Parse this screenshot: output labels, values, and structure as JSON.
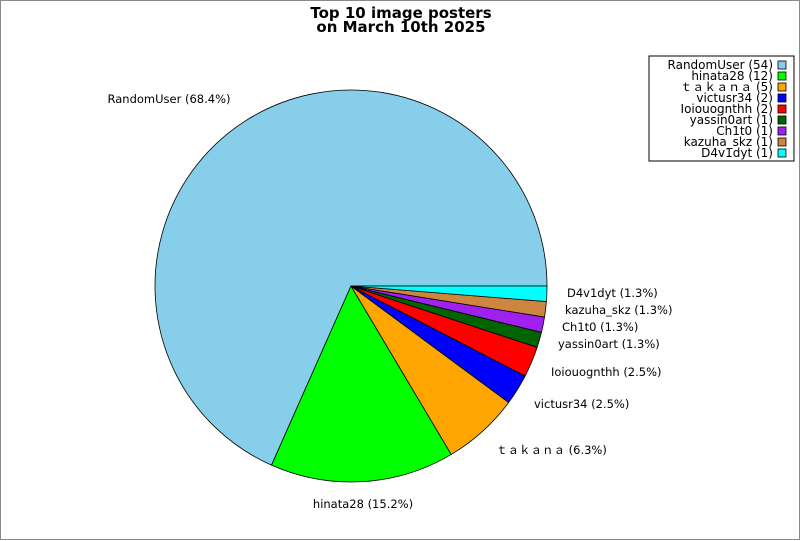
{
  "chart_data": {
    "type": "pie",
    "title": [
      "Top 10 image posters",
      "on March 10th 2025"
    ],
    "slices": [
      {
        "label": "RandomUser",
        "value": 54,
        "percent": "68.4%",
        "color": "#87CEEB"
      },
      {
        "label": "hinata28",
        "value": 12,
        "percent": "15.2%",
        "color": "#00FF00"
      },
      {
        "label": "ｔａｋａｎａ",
        "value": 5,
        "percent": "6.3%",
        "color": "#FFA500"
      },
      {
        "label": "victusr34",
        "value": 2,
        "percent": "2.5%",
        "color": "#0000FF"
      },
      {
        "label": "Ioiouognthh",
        "value": 2,
        "percent": "2.5%",
        "color": "#FF0000"
      },
      {
        "label": "yassin0art",
        "value": 1,
        "percent": "1.3%",
        "color": "#006400"
      },
      {
        "label": "Ch1t0",
        "value": 1,
        "percent": "1.3%",
        "color": "#A020F0"
      },
      {
        "label": "kazuha_skz",
        "value": 1,
        "percent": "1.3%",
        "color": "#CD853F"
      },
      {
        "label": "D4v1dyt",
        "value": 1,
        "percent": "1.3%",
        "color": "#00FFFF"
      }
    ],
    "start_angle_deg": 0,
    "direction": "clockwise",
    "legend_position": "top-right"
  }
}
